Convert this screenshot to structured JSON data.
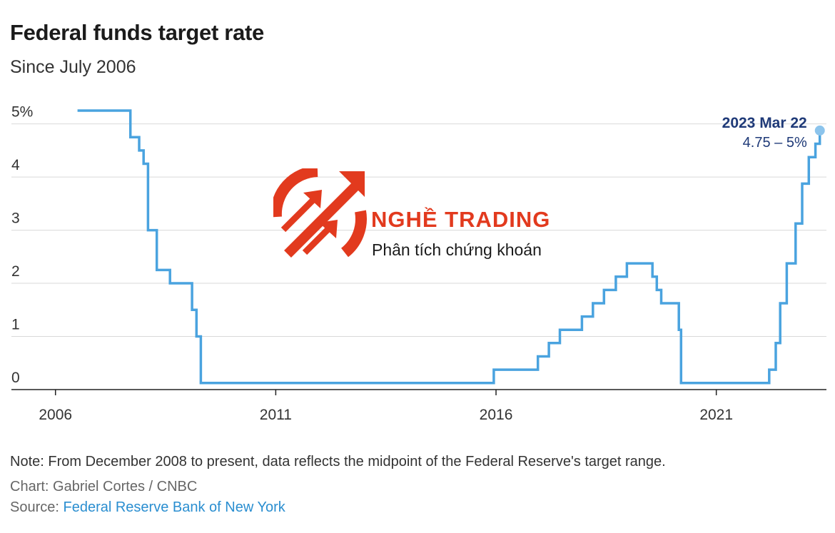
{
  "header": {
    "title": "Federal funds target rate",
    "subtitle": "Since July 2006"
  },
  "watermark": {
    "brand": "NGHỀ TRADING",
    "tagline": "Phân tích chứng khoán",
    "logo_icon": "circular-arrows-logo-icon",
    "color": "#e23a1e"
  },
  "footer": {
    "note": "Note: From December 2008 to present, data reflects the midpoint of the Federal Reserve's target range.",
    "credit": "Chart: Gabriel Cortes / CNBC",
    "source_prefix": "Source: ",
    "source_link": "Federal Reserve Bank of New York"
  },
  "chart_data": {
    "type": "line",
    "step": true,
    "title": "Federal funds target rate",
    "subtitle": "Since July 2006",
    "xlabel": "",
    "ylabel": "",
    "xlim": [
      2005.0,
      2023.5
    ],
    "ylim": [
      0,
      5.25
    ],
    "grid": true,
    "line_color": "#4aa3df",
    "x_ticks": [
      {
        "value": 2006,
        "label": "2006"
      },
      {
        "value": 2011,
        "label": "2011"
      },
      {
        "value": 2016,
        "label": "2016"
      },
      {
        "value": 2021,
        "label": "2021"
      }
    ],
    "y_ticks": [
      {
        "value": 0,
        "label": "0"
      },
      {
        "value": 1,
        "label": "1"
      },
      {
        "value": 2,
        "label": "2"
      },
      {
        "value": 3,
        "label": "3"
      },
      {
        "value": 4,
        "label": "4"
      },
      {
        "value": 5,
        "label": "5%"
      }
    ],
    "series": [
      {
        "x": [
          2006.5,
          2007.7,
          2007.9,
          2008.0,
          2008.1,
          2008.25,
          2008.3,
          2008.6,
          2009.1,
          2009.2,
          2009.3,
          2015.95,
          2016.95,
          2017.2,
          2017.45,
          2017.95,
          2018.2,
          2018.45,
          2018.72,
          2018.97,
          2019.55,
          2019.65,
          2019.75,
          2020.15,
          2020.2,
          2022.2,
          2022.35,
          2022.45,
          2022.6,
          2022.8,
          2022.95,
          2023.1,
          2023.25,
          2023.35
        ],
        "y": [
          5.25,
          4.75,
          4.5,
          4.25,
          3.0,
          3.0,
          2.25,
          2.0,
          1.5,
          1.0,
          0.125,
          0.375,
          0.625,
          0.875,
          1.125,
          1.375,
          1.625,
          1.875,
          2.125,
          2.375,
          2.125,
          1.875,
          1.625,
          1.125,
          0.125,
          0.375,
          0.875,
          1.625,
          2.375,
          3.125,
          3.875,
          4.375,
          4.625,
          4.875
        ]
      }
    ],
    "annotation": {
      "x": 2023.35,
      "y": 4.875,
      "date_label": "2023 Mar 22",
      "value_label": "4.75 – 5%",
      "color": "#1f3a78"
    }
  }
}
